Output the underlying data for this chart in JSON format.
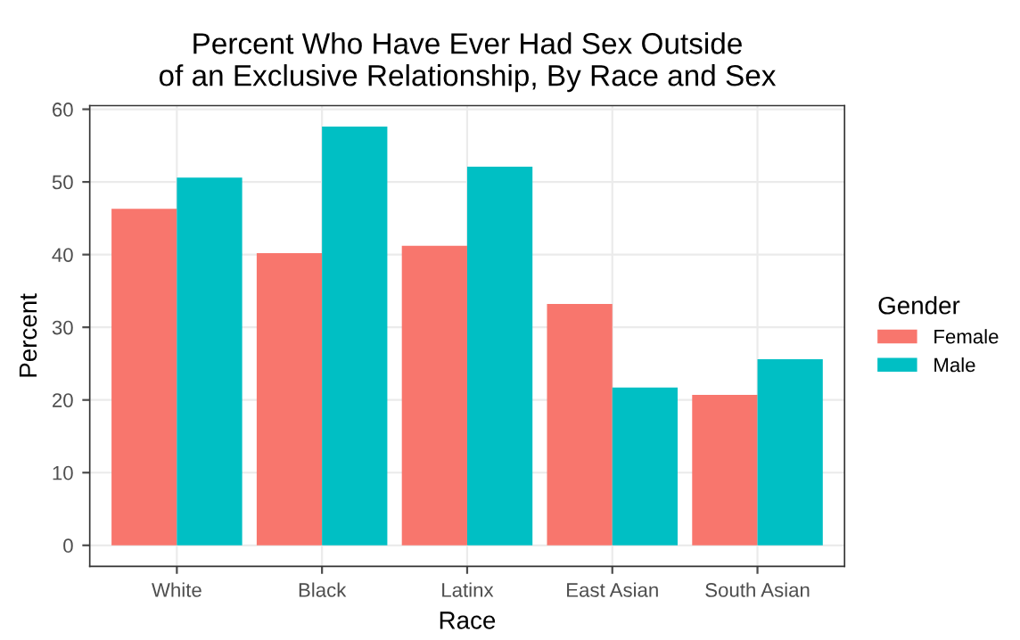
{
  "chart_data": {
    "type": "bar",
    "title": "Percent Who Have Ever Had Sex Outside\nof an Exclusive Relationship, By Race and Sex",
    "xlabel": "Race",
    "ylabel": "Percent",
    "legend_title": "Gender",
    "categories": [
      "White",
      "Black",
      "Latinx",
      "East Asian",
      "South Asian"
    ],
    "series": [
      {
        "name": "Female",
        "color": "#f8766d",
        "values": [
          46.3,
          40.2,
          41.2,
          33.2,
          20.7
        ]
      },
      {
        "name": "Male",
        "color": "#00bfc4",
        "values": [
          50.6,
          57.6,
          52.1,
          21.7,
          25.6
        ]
      }
    ],
    "ylim": [
      -2.9,
      60.5
    ],
    "yticks": [
      0,
      10,
      20,
      30,
      40,
      50,
      60
    ],
    "grid": true,
    "legend": "right"
  }
}
